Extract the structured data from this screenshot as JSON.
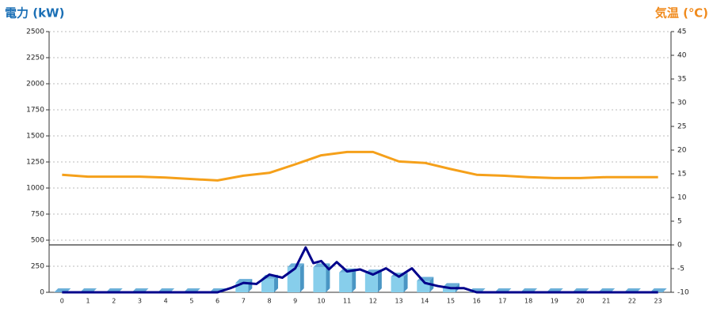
{
  "chart_data": {
    "type": "combo",
    "y_title": "電力 (kW)",
    "y2_title": "気温 (℃)",
    "categories": [
      "0",
      "1",
      "2",
      "3",
      "4",
      "5",
      "6",
      "7",
      "8",
      "9",
      "10",
      "11",
      "12",
      "13",
      "14",
      "15",
      "16",
      "17",
      "18",
      "19",
      "20",
      "21",
      "22",
      "23"
    ],
    "ylim": [
      0,
      2500
    ],
    "yticks": [
      0,
      250,
      500,
      750,
      1000,
      1250,
      1500,
      1750,
      2000,
      2250,
      2500
    ],
    "y2lim": [
      -10,
      45
    ],
    "y2ticks": [
      -10,
      -5,
      0,
      5,
      10,
      15,
      20,
      25,
      30,
      35,
      40,
      45
    ],
    "grid": true,
    "series": [
      {
        "type": "bar",
        "color": "#87ceeb",
        "values": [
          0,
          0,
          0,
          0,
          0,
          0,
          0,
          90,
          130,
          240,
          240,
          190,
          180,
          150,
          110,
          50,
          0,
          0,
          0,
          0,
          0,
          0,
          0,
          0
        ]
      },
      {
        "type": "line",
        "color": "#00008b",
        "x": [
          0,
          0.5,
          1,
          1.5,
          2,
          2.5,
          3,
          3.5,
          4,
          4.5,
          5,
          5.5,
          6,
          6.5,
          7,
          7.5,
          8,
          8.5,
          9,
          9.4,
          9.7,
          10,
          10.3,
          10.6,
          11,
          11.5,
          12,
          12.5,
          13,
          13.5,
          14,
          14.5,
          15,
          15.5,
          16,
          17,
          18,
          19,
          20,
          21,
          22,
          23
        ],
        "values": [
          0,
          0,
          0,
          0,
          0,
          0,
          0,
          0,
          0,
          0,
          0,
          0,
          0,
          40,
          90,
          80,
          170,
          140,
          230,
          430,
          280,
          300,
          220,
          290,
          200,
          220,
          170,
          230,
          150,
          230,
          90,
          60,
          40,
          40,
          0,
          0,
          0,
          0,
          0,
          0,
          0,
          0
        ]
      },
      {
        "type": "line",
        "axis": "y2",
        "color": "#f5a01a",
        "values": [
          14.8,
          14.4,
          14.4,
          14.4,
          14.2,
          13.9,
          13.6,
          14.6,
          15.2,
          17,
          18.9,
          19.6,
          19.6,
          17.6,
          17.3,
          16,
          14.8,
          14.6,
          14.3,
          14.1,
          14.1,
          14.3,
          14.3,
          14.3
        ]
      }
    ]
  }
}
